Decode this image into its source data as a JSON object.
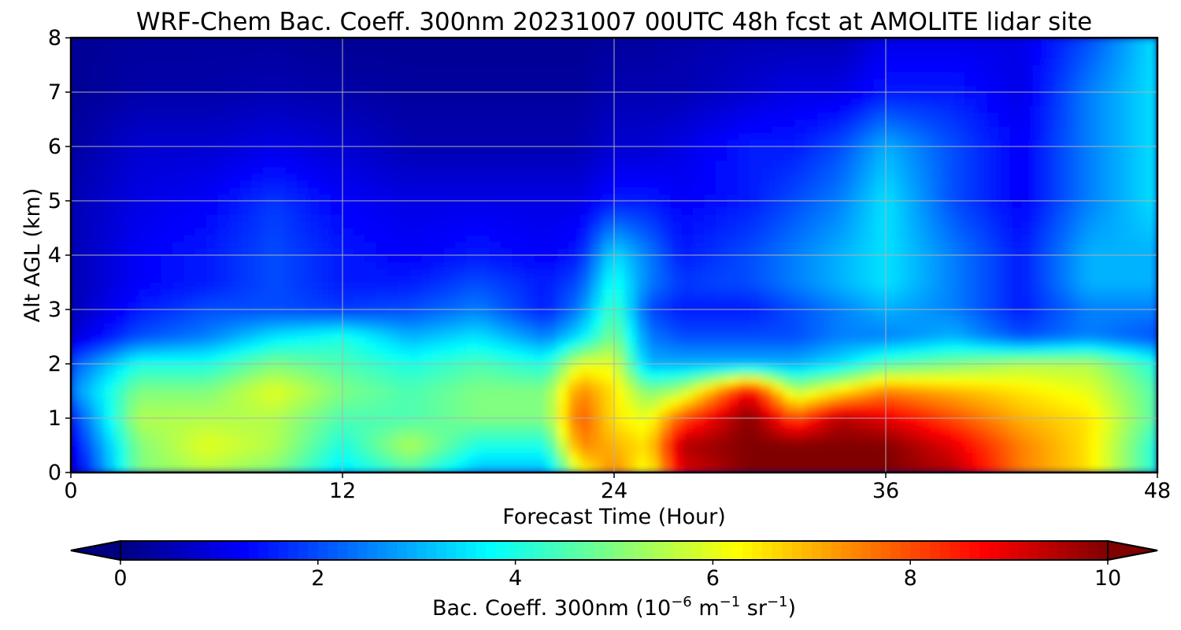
{
  "chart_data": {
    "type": "heatmap",
    "title": "WRF-Chem Bac. Coeff. 300nm  20231007 00UTC 48h fcst at AMOLITE lidar site",
    "xlabel": "Forecast Time (Hour)",
    "ylabel": "Alt AGL (km)",
    "xlim": [
      0,
      48
    ],
    "ylim": [
      0,
      8
    ],
    "xticks": [
      0,
      12,
      24,
      36,
      48
    ],
    "yticks": [
      0,
      1,
      2,
      3,
      4,
      5,
      6,
      7,
      8
    ],
    "grid": true,
    "colormap": "jet",
    "x": [
      0,
      3,
      6,
      9,
      12,
      15,
      18,
      21,
      22.5,
      24,
      25.5,
      27,
      30,
      32,
      34,
      36,
      39,
      42,
      45,
      48
    ],
    "y": [
      0.0,
      0.5,
      1.0,
      1.5,
      2.0,
      2.5,
      3.0,
      3.5,
      4.0,
      5.0,
      6.0,
      7.0,
      8.0
    ],
    "z": [
      [
        0.5,
        5.0,
        5.5,
        5.0,
        3.5,
        4.5,
        3.0,
        3.0,
        6.0,
        7.5,
        6.0,
        9.0,
        10.0,
        10.0,
        10.0,
        10.0,
        9.5,
        7.5,
        6.5,
        4.0
      ],
      [
        1.0,
        5.0,
        6.0,
        5.5,
        4.0,
        5.5,
        4.0,
        4.0,
        7.5,
        7.0,
        6.5,
        9.5,
        10.0,
        10.0,
        10.0,
        10.0,
        9.0,
        7.5,
        6.5,
        4.0
      ],
      [
        1.5,
        5.5,
        5.5,
        5.5,
        4.5,
        4.5,
        5.0,
        5.0,
        8.0,
        6.5,
        6.0,
        8.0,
        10.0,
        8.0,
        9.5,
        9.0,
        8.0,
        7.0,
        6.5,
        4.5
      ],
      [
        2.5,
        5.0,
        5.0,
        6.0,
        5.0,
        4.5,
        5.0,
        5.0,
        7.5,
        6.5,
        5.0,
        5.5,
        9.0,
        5.5,
        6.5,
        7.5,
        7.0,
        6.5,
        6.0,
        4.5
      ],
      [
        2.0,
        4.0,
        4.0,
        5.0,
        4.5,
        4.0,
        4.5,
        4.0,
        6.0,
        6.0,
        3.0,
        3.0,
        3.0,
        3.0,
        3.5,
        4.5,
        5.0,
        5.5,
        5.5,
        4.0
      ],
      [
        0.8,
        2.0,
        2.5,
        3.5,
        4.0,
        3.0,
        3.5,
        2.5,
        3.5,
        5.0,
        2.5,
        2.0,
        2.0,
        2.0,
        2.5,
        2.5,
        3.0,
        2.0,
        2.5,
        2.0
      ],
      [
        0.5,
        1.5,
        2.0,
        2.0,
        1.8,
        2.0,
        2.5,
        1.5,
        2.5,
        4.5,
        2.0,
        1.5,
        1.5,
        2.0,
        2.5,
        3.0,
        2.5,
        1.5,
        2.5,
        2.5
      ],
      [
        0.5,
        1.2,
        1.5,
        2.0,
        1.5,
        1.5,
        2.0,
        1.5,
        2.0,
        4.0,
        2.5,
        1.8,
        2.0,
        2.5,
        3.0,
        3.5,
        2.5,
        1.5,
        3.0,
        3.0
      ],
      [
        0.5,
        1.2,
        1.5,
        2.0,
        1.5,
        1.2,
        1.5,
        1.2,
        1.5,
        3.5,
        2.5,
        1.5,
        2.0,
        2.5,
        3.0,
        3.5,
        2.5,
        1.5,
        3.0,
        3.0
      ],
      [
        0.5,
        1.0,
        1.2,
        1.8,
        1.2,
        1.0,
        1.0,
        1.0,
        1.0,
        1.5,
        1.5,
        1.2,
        1.5,
        2.0,
        2.5,
        3.5,
        2.0,
        1.2,
        2.5,
        3.5
      ],
      [
        0.3,
        0.8,
        0.8,
        1.0,
        0.8,
        0.5,
        0.5,
        0.5,
        0.5,
        0.8,
        0.8,
        1.0,
        1.5,
        1.5,
        2.0,
        3.0,
        2.0,
        1.2,
        2.5,
        3.5
      ],
      [
        0.2,
        0.4,
        0.4,
        0.5,
        0.4,
        0.3,
        0.3,
        0.3,
        0.3,
        0.5,
        0.5,
        0.5,
        0.8,
        1.0,
        1.0,
        1.5,
        1.5,
        1.0,
        2.5,
        3.5
      ],
      [
        0.2,
        0.3,
        0.3,
        0.3,
        0.2,
        0.2,
        0.2,
        0.2,
        0.2,
        0.3,
        0.3,
        0.4,
        0.5,
        0.5,
        0.5,
        1.0,
        1.0,
        1.0,
        2.0,
        3.5
      ]
    ],
    "colorbar": {
      "min": 0,
      "max": 10,
      "ticks": [
        0,
        2,
        4,
        6,
        8,
        10
      ],
      "extend": "both",
      "label_main": "Bac. Coeff. 300nm  (10",
      "label_exp1": "−6",
      "label_mid": " m",
      "label_exp2": "−1",
      "label_mid2": " sr",
      "label_exp3": "−1",
      "label_end": ")"
    }
  }
}
